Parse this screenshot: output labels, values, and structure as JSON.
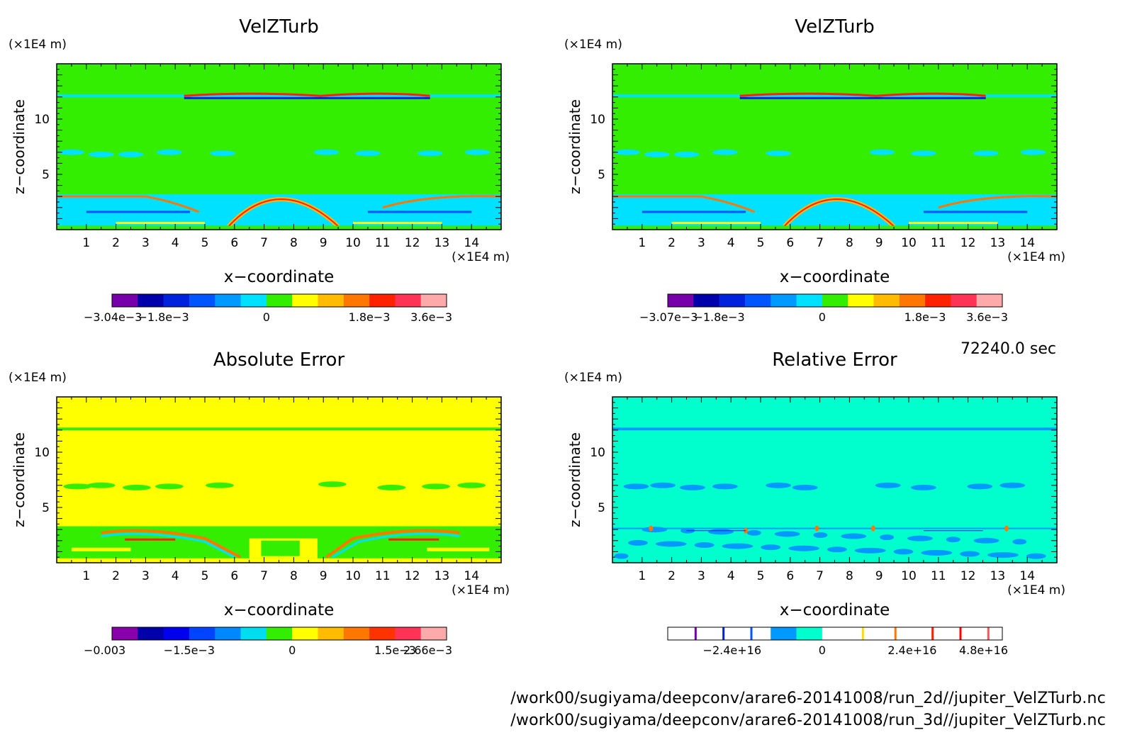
{
  "figure": {
    "time_label": "72240.0 sec",
    "file_paths": [
      "/work00/sugiyama/deepconv/arare6-20141008/run_2d//jupiter_VelZTurb.nc",
      "/work00/sugiyama/deepconv/arare6-20141008/run_3d//jupiter_VelZTurb.nc"
    ]
  },
  "chart_data": [
    {
      "type": "heatmap",
      "title": "VelZTurb",
      "xlabel": "x−coordinate",
      "ylabel": "z−coordinate",
      "x_unit": "(×1E4 m)",
      "y_unit": "(×1E4 m)",
      "xlim": [
        0,
        15
      ],
      "ylim": [
        0,
        15
      ],
      "x_ticks": [
        "1",
        "2",
        "3",
        "4",
        "5",
        "6",
        "7",
        "8",
        "9",
        "10",
        "11",
        "12",
        "13",
        "14"
      ],
      "y_ticks": [
        "5",
        "10"
      ],
      "background_color": "#33ee00",
      "colorbar": {
        "colors": [
          "#7700aa",
          "#0000aa",
          "#0022dd",
          "#0055ff",
          "#0099ff",
          "#00e0ff",
          "#33ee00",
          "#ffff00",
          "#ffbb00",
          "#ff7700",
          "#ff2200",
          "#ff3355",
          "#ffaaaa"
        ],
        "labels": [
          "−3.04e−3",
          "−1.8e−3",
          "0",
          "1.8e−3",
          "3.6e−3"
        ]
      }
    },
    {
      "type": "heatmap",
      "title": "VelZTurb",
      "xlabel": "x−coordinate",
      "ylabel": "z−coordinate",
      "x_unit": "(×1E4 m)",
      "y_unit": "(×1E4 m)",
      "xlim": [
        0,
        15
      ],
      "ylim": [
        0,
        15
      ],
      "x_ticks": [
        "1",
        "2",
        "3",
        "4",
        "5",
        "6",
        "7",
        "8",
        "9",
        "10",
        "11",
        "12",
        "13",
        "14"
      ],
      "y_ticks": [
        "5",
        "10"
      ],
      "background_color": "#33ee00",
      "colorbar": {
        "colors": [
          "#7700aa",
          "#0000aa",
          "#0022dd",
          "#0055ff",
          "#0099ff",
          "#00e0ff",
          "#33ee00",
          "#ffff00",
          "#ffbb00",
          "#ff7700",
          "#ff2200",
          "#ff3355",
          "#ffaaaa"
        ],
        "labels": [
          "−3.07e−3",
          "−1.8e−3",
          "0",
          "1.8e−3",
          "3.6e−3"
        ]
      }
    },
    {
      "type": "heatmap",
      "title": "Absolute Error",
      "xlabel": "x−coordinate",
      "ylabel": "z−coordinate",
      "x_unit": "(×1E4 m)",
      "y_unit": "(×1E4 m)",
      "xlim": [
        0,
        15
      ],
      "ylim": [
        0,
        15
      ],
      "x_ticks": [
        "1",
        "2",
        "3",
        "4",
        "5",
        "6",
        "7",
        "8",
        "9",
        "10",
        "11",
        "12",
        "13",
        "14"
      ],
      "y_ticks": [
        "5",
        "10"
      ],
      "background_color": "#ffff00",
      "colorbar": {
        "colors": [
          "#8800aa",
          "#0000aa",
          "#0000ee",
          "#0044ff",
          "#0088ff",
          "#00ddee",
          "#33ee00",
          "#ffff00",
          "#ffbb00",
          "#ff7700",
          "#ff3300",
          "#ff3355",
          "#ffaaaa"
        ],
        "labels": [
          "−0.003",
          "−1.5e−3",
          "0",
          "1.5e−3",
          "2.66e−3"
        ]
      }
    },
    {
      "type": "heatmap",
      "title": "Relative Error",
      "xlabel": "x−coordinate",
      "ylabel": "z−coordinate",
      "x_unit": "(×1E4 m)",
      "y_unit": "(×1E4 m)",
      "xlim": [
        0,
        15
      ],
      "ylim": [
        0,
        15
      ],
      "x_ticks": [
        "1",
        "2",
        "3",
        "4",
        "5",
        "6",
        "7",
        "8",
        "9",
        "10",
        "11",
        "12",
        "13",
        "14"
      ],
      "y_ticks": [
        "5",
        "10"
      ],
      "background_color": "#00ffcc",
      "colorbar": {
        "colors": [
          "#ffffff",
          "#ffffff",
          "#ffffff",
          "#ffffff",
          "#0099ff",
          "#00ffcc",
          "#ffffff",
          "#ffffff",
          "#ffffff",
          "#ffffff",
          "#ffffff",
          "#ffffff",
          "#ffffff"
        ],
        "labels": [
          "−2.4e+16",
          "0",
          "2.4e+16",
          "4.8e+16"
        ]
      }
    }
  ]
}
